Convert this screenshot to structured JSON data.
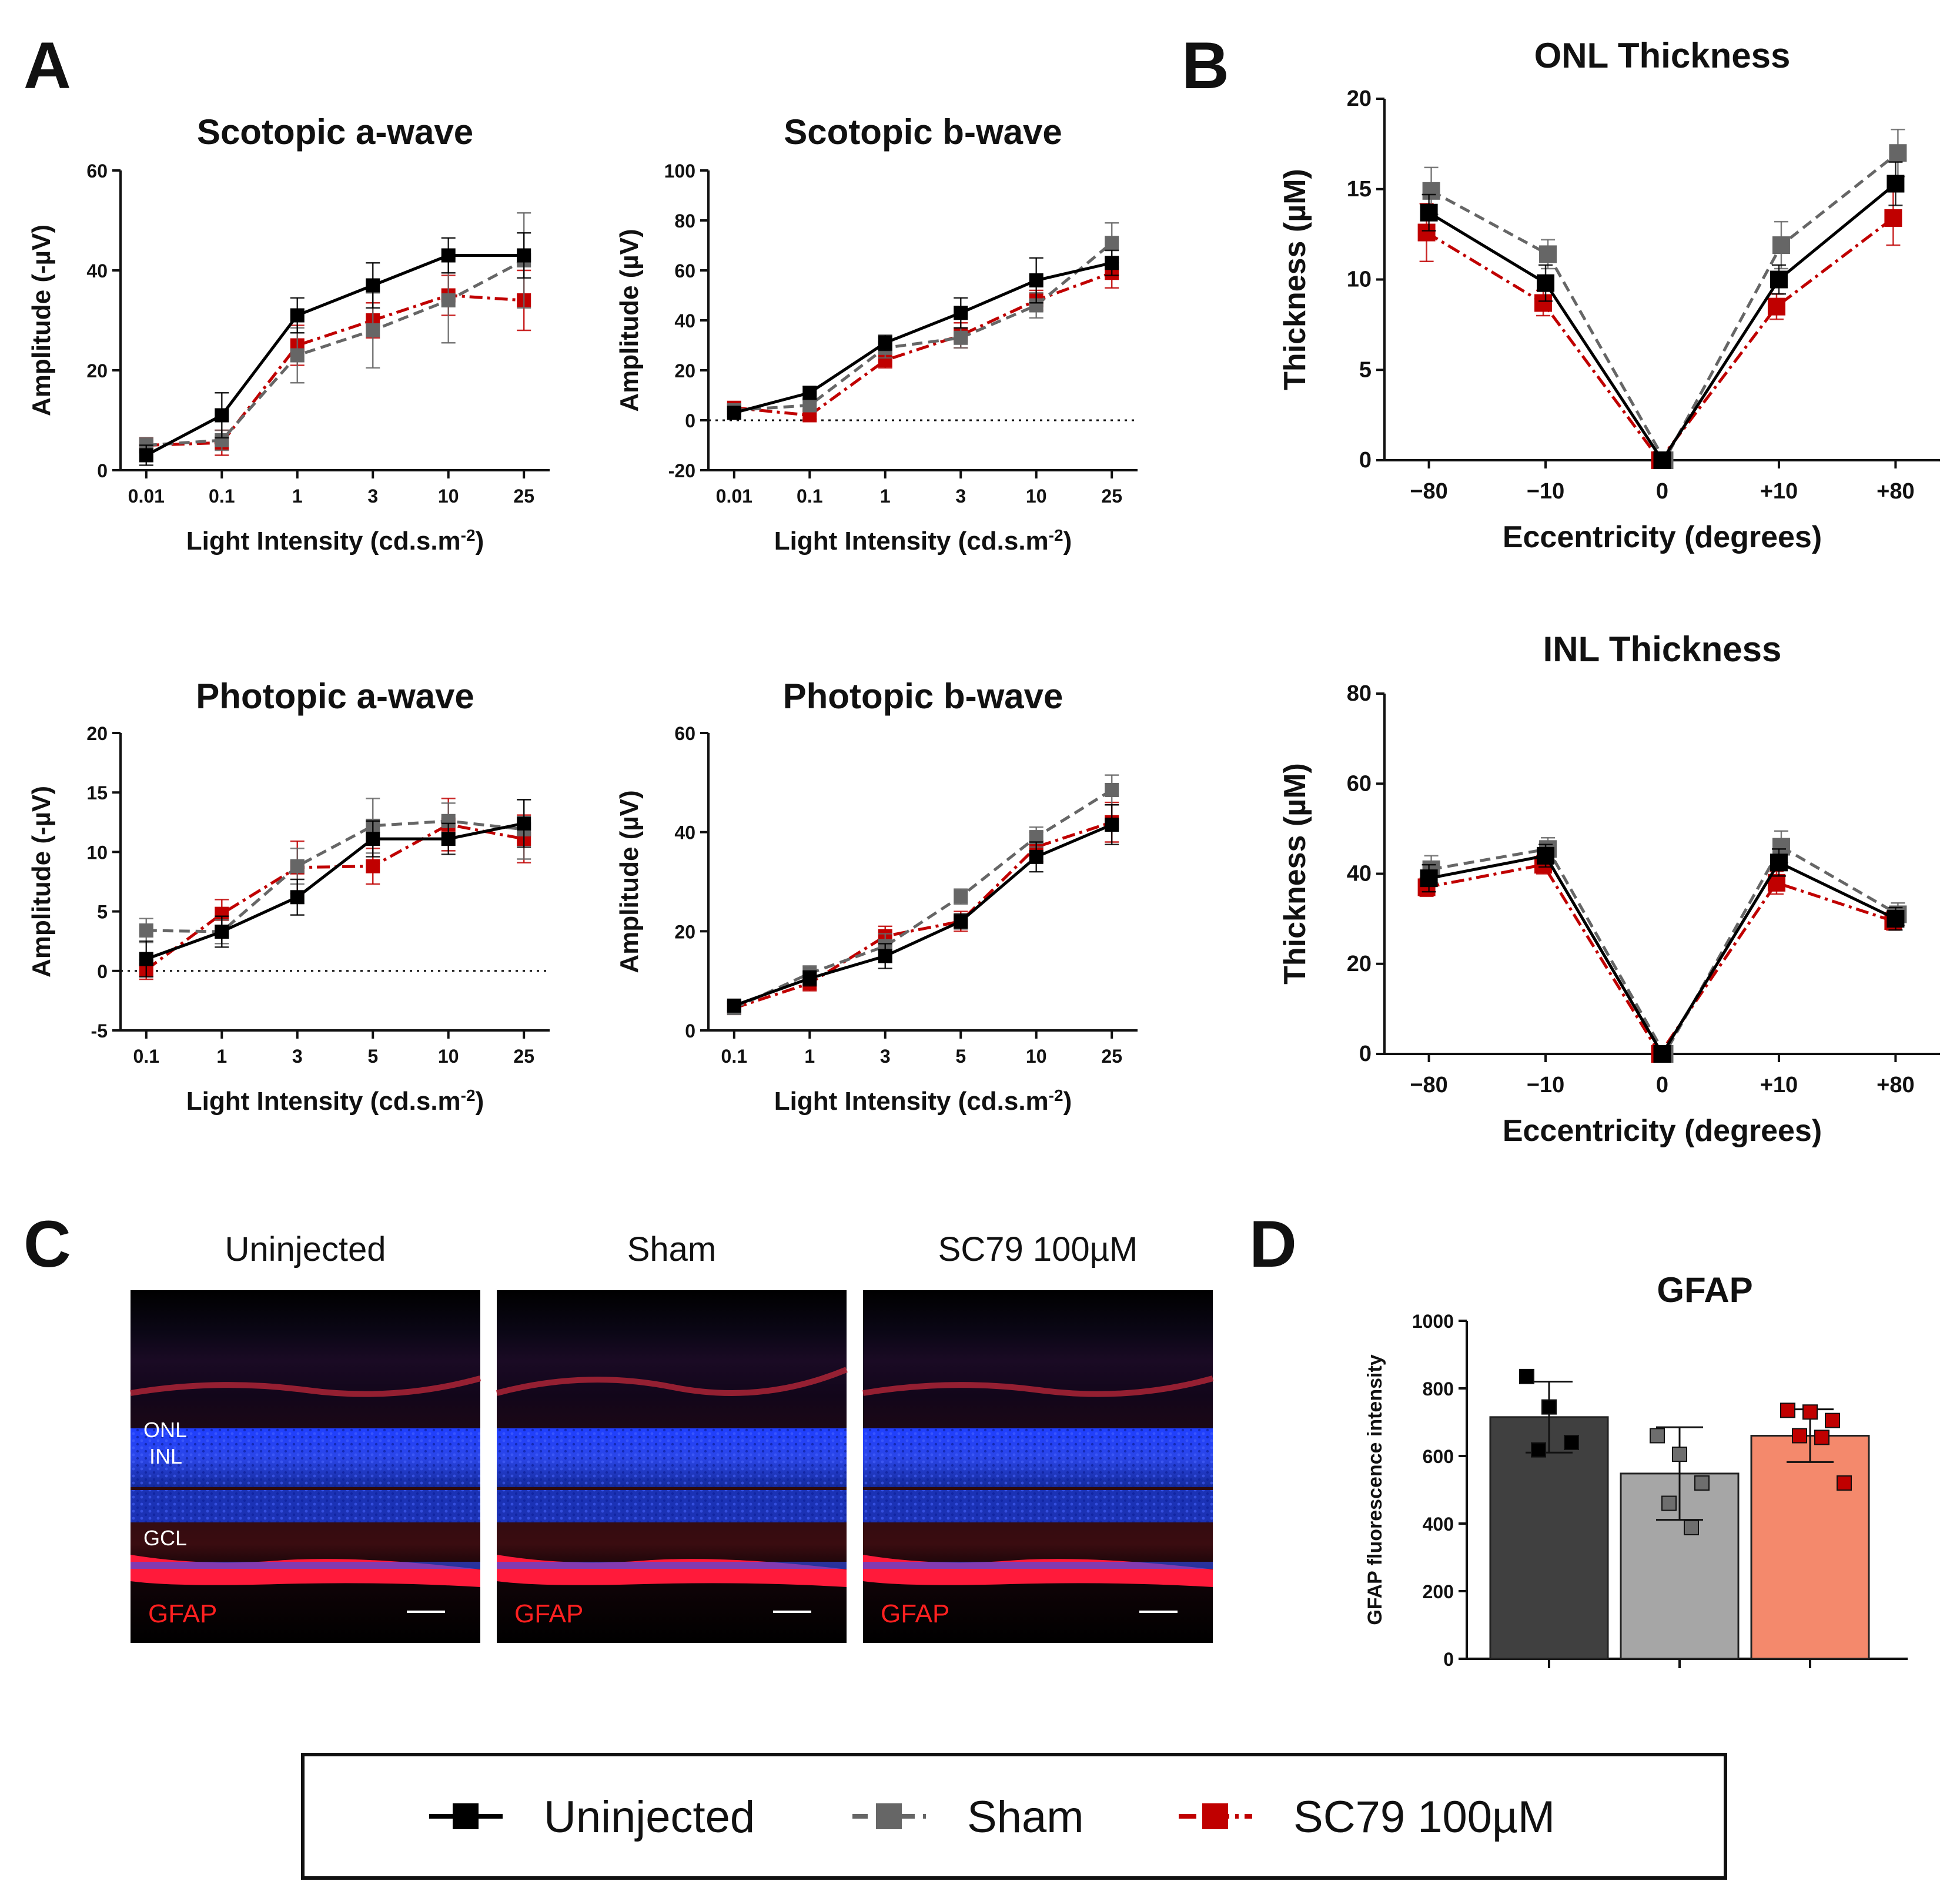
{
  "panel_labels": {
    "a": "A",
    "b": "B",
    "c": "C",
    "d": "D"
  },
  "legend": {
    "items": [
      {
        "label": "Uninjected",
        "color": "#000000",
        "dash": "solid"
      },
      {
        "label": "Sham",
        "color": "#666666",
        "dash": "dashed"
      },
      {
        "label": "SC79 100µM",
        "color": "#c00000",
        "dash": "dashdot"
      }
    ]
  },
  "panel_c": {
    "images": [
      {
        "title": "Uninjected",
        "stain": "GFAP",
        "layers": [
          "ONL",
          "INL",
          "GCL"
        ]
      },
      {
        "title": "Sham",
        "stain": "GFAP"
      },
      {
        "title": "SC79 100µM",
        "stain": "GFAP"
      }
    ]
  },
  "chart_data": [
    {
      "id": "scotopic_a",
      "type": "line",
      "title": "Scotopic a-wave",
      "xlabel": "Light Intensity (cd.s.m",
      "xlabel_sup": "-2",
      "xlabel_end": ")",
      "ylabel": "Amplitude (-µV)",
      "categories": [
        "0.01",
        "0.1",
        "1",
        "3",
        "10",
        "25"
      ],
      "ylim": [
        0,
        60
      ],
      "yticks": [
        0,
        20,
        40,
        60
      ],
      "zero_line": false,
      "series": [
        {
          "name": "Uninjected",
          "values": [
            3,
            11,
            31,
            37,
            43,
            43
          ],
          "err": [
            2,
            4.5,
            3.5,
            4.5,
            3.5,
            4.5
          ]
        },
        {
          "name": "Sham",
          "values": [
            5,
            6,
            23,
            28,
            34,
            42
          ],
          "err": [
            1.5,
            2,
            5.5,
            7.5,
            8.5,
            9.5
          ]
        },
        {
          "name": "SC79 100µM",
          "values": [
            5,
            5.5,
            25,
            30,
            35,
            34
          ],
          "err": [
            1.5,
            2.5,
            4,
            3.5,
            4,
            6
          ]
        }
      ]
    },
    {
      "id": "scotopic_b",
      "type": "line",
      "title": "Scotopic b-wave",
      "xlabel": "Light Intensity (cd.s.m",
      "xlabel_sup": "-2",
      "xlabel_end": ")",
      "ylabel": "Amplitude (µV)",
      "categories": [
        "0.01",
        "0.1",
        "1",
        "3",
        "10",
        "25"
      ],
      "ylim": [
        -20,
        100
      ],
      "yticks": [
        -20,
        0,
        20,
        40,
        60,
        80,
        100
      ],
      "zero_line": true,
      "series": [
        {
          "name": "Uninjected",
          "values": [
            3,
            11,
            31,
            43,
            56,
            63
          ],
          "err": [
            1.5,
            2.5,
            3,
            6,
            9,
            5
          ]
        },
        {
          "name": "Sham",
          "values": [
            4,
            6,
            29,
            33,
            46,
            71
          ],
          "err": [
            1.5,
            2,
            4,
            4,
            5,
            8
          ]
        },
        {
          "name": "SC79 100µM",
          "values": [
            5,
            2,
            24,
            34,
            48,
            59
          ],
          "err": [
            1.5,
            1.5,
            3,
            5,
            4,
            6
          ]
        }
      ]
    },
    {
      "id": "photopic_a",
      "type": "line",
      "title": "Photopic a-wave",
      "xlabel": "Light Intensity (cd.s.m",
      "xlabel_sup": "-2",
      "xlabel_end": ")",
      "ylabel": "Amplitude (-µV)",
      "categories": [
        "0.1",
        "1",
        "3",
        "5",
        "10",
        "25"
      ],
      "ylim": [
        -5,
        20
      ],
      "yticks": [
        -5,
        0,
        5,
        10,
        15,
        20
      ],
      "zero_line": true,
      "series": [
        {
          "name": "Uninjected",
          "values": [
            1,
            3.3,
            6.2,
            11.1,
            11.1,
            12.4
          ],
          "err": [
            1.5,
            1.3,
            1.5,
            1.5,
            1.3,
            2
          ]
        },
        {
          "name": "Sham",
          "values": [
            3.4,
            3.3,
            8.8,
            12.2,
            12.6,
            11.9
          ],
          "err": [
            1,
            1,
            1.5,
            2.3,
            1.5,
            2.5
          ]
        },
        {
          "name": "SC79 100µM",
          "values": [
            0.1,
            4.8,
            8.7,
            8.8,
            12.3,
            11.1
          ],
          "err": [
            0.8,
            1.2,
            2.2,
            1.5,
            2.2,
            2
          ]
        }
      ]
    },
    {
      "id": "photopic_b",
      "type": "line",
      "title": "Photopic b-wave",
      "xlabel": "Light Intensity (cd.s.m",
      "xlabel_sup": "-2",
      "xlabel_end": ")",
      "ylabel": "Amplitude (µV)",
      "categories": [
        "0.1",
        "1",
        "3",
        "5",
        "10",
        "25"
      ],
      "ylim": [
        0,
        60
      ],
      "yticks": [
        0,
        20,
        40,
        60
      ],
      "zero_line": false,
      "series": [
        {
          "name": "Uninjected",
          "values": [
            5,
            10.5,
            15,
            22,
            35,
            41.5
          ],
          "err": [
            1,
            1.5,
            2.5,
            1.5,
            3,
            4
          ]
        },
        {
          "name": "Sham",
          "values": [
            4.5,
            11.5,
            17,
            27,
            39,
            48.5
          ],
          "err": [
            1,
            1.5,
            2.5,
            1.5,
            2,
            3
          ]
        },
        {
          "name": "SC79 100µM",
          "values": [
            4.5,
            9.5,
            19,
            22,
            37,
            42
          ],
          "err": [
            1,
            1.5,
            2,
            2,
            3,
            4
          ]
        }
      ]
    },
    {
      "id": "onl",
      "type": "line",
      "title": "ONL Thickness",
      "xlabel": "Eccentricity (degrees)",
      "ylabel": "Thickness (µM)",
      "categories": [
        "−80",
        "−10",
        "0",
        "+10",
        "+80"
      ],
      "ylim": [
        0,
        20
      ],
      "yticks": [
        0,
        5,
        10,
        15,
        20
      ],
      "zero_line": false,
      "series": [
        {
          "name": "Uninjected",
          "values": [
            13.7,
            9.8,
            0,
            10,
            15.3
          ],
          "err": [
            1,
            1,
            0.3,
            0.8,
            1.2
          ]
        },
        {
          "name": "Sham",
          "values": [
            14.9,
            11.4,
            0,
            11.9,
            17
          ],
          "err": [
            1.3,
            0.8,
            0.3,
            1.3,
            1.3
          ]
        },
        {
          "name": "SC79 100µM",
          "values": [
            12.6,
            8.7,
            0,
            8.5,
            13.4
          ],
          "err": [
            1.6,
            0.7,
            0.3,
            0.7,
            1.5
          ]
        }
      ]
    },
    {
      "id": "inl",
      "type": "line",
      "title": "INL Thickness",
      "xlabel": "Eccentricity (degrees)",
      "ylabel": "Thickness (µM)",
      "categories": [
        "−80",
        "−10",
        "0",
        "+10",
        "+80"
      ],
      "ylim": [
        0,
        80
      ],
      "yticks": [
        0,
        20,
        40,
        60,
        80
      ],
      "zero_line": false,
      "series": [
        {
          "name": "Uninjected",
          "values": [
            39,
            44,
            0,
            42.5,
            30
          ],
          "err": [
            3,
            2.5,
            1,
            3,
            2.5
          ]
        },
        {
          "name": "Sham",
          "values": [
            41,
            45.5,
            0,
            46,
            31
          ],
          "err": [
            3,
            2.5,
            1,
            3.5,
            2.5
          ]
        },
        {
          "name": "SC79 100µM",
          "values": [
            37,
            42,
            0,
            38,
            29.5
          ],
          "err": [
            2,
            2,
            1,
            2.5,
            2
          ]
        }
      ]
    },
    {
      "id": "gfap",
      "type": "bar",
      "title": "GFAP",
      "xlabel": "",
      "ylabel": "GFAP fluorescence intensity",
      "categories": [
        "Uninjected",
        "Sham",
        "SC79 100µM"
      ],
      "ylim": [
        0,
        1000
      ],
      "yticks": [
        0,
        200,
        400,
        600,
        800,
        1000
      ],
      "values": [
        715,
        548,
        660
      ],
      "err": [
        105,
        137,
        78
      ],
      "colors": [
        "#404040",
        "#a6a6a6",
        "#f4896c"
      ],
      "point_colors": [
        "#000000",
        "#6e6e6e",
        "#c00000"
      ],
      "points": [
        [
          835,
          745,
          640,
          618
        ],
        [
          660,
          605,
          520,
          460,
          388
        ],
        [
          735,
          730,
          705,
          660,
          655,
          520
        ]
      ]
    }
  ]
}
